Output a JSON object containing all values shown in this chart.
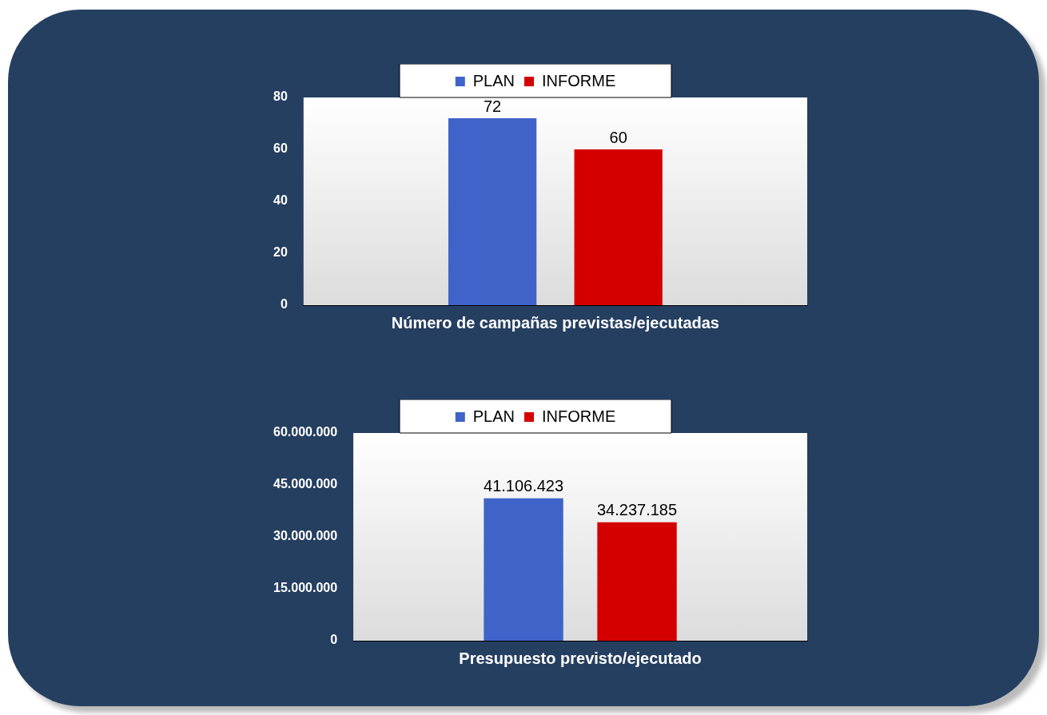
{
  "chart_data": [
    {
      "type": "bar",
      "categories": [
        "Número de campañas previstas/ejecutadas"
      ],
      "series": [
        {
          "name": "PLAN",
          "color": "#3f63c9",
          "values": [
            72
          ]
        },
        {
          "name": "INFORME",
          "color": "#d40000",
          "values": [
            60
          ]
        }
      ],
      "ylim": [
        0,
        80
      ],
      "yticks": [
        0,
        20,
        40,
        60,
        80
      ],
      "grid": false,
      "legend": "top",
      "data_labels": true
    },
    {
      "type": "bar",
      "categories": [
        "Presupuesto previsto/ejecutado"
      ],
      "series": [
        {
          "name": "PLAN",
          "color": "#3f63c9",
          "values": [
            41106423
          ],
          "value_labels": [
            "41.106.423"
          ]
        },
        {
          "name": "INFORME",
          "color": "#d40000",
          "values": [
            34237185
          ],
          "value_labels": [
            "34.237.185"
          ]
        }
      ],
      "ylim": [
        0,
        60000000
      ],
      "yticks": [
        0,
        {
          "value": 15000000,
          "label": "15.000.000"
        },
        {
          "value": 30000000,
          "label": "30.000.000"
        },
        {
          "value": 45000000,
          "label": "45.000.000"
        },
        {
          "value": 60000000,
          "label": "60.000.000"
        }
      ],
      "grid": false,
      "legend": "top"
    }
  ]
}
